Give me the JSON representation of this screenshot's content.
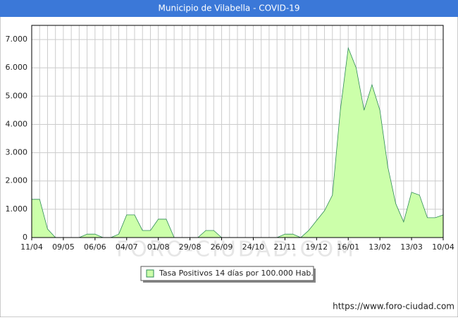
{
  "chart_data": {
    "type": "area",
    "title": "Municipio de Vilabella - COVID-19",
    "watermark": "FORO-CIUDAD.COM",
    "footer": "https://www.foro-ciudad.com",
    "categories": [
      "11/04",
      null,
      null,
      null,
      "09/05",
      null,
      null,
      null,
      "06/06",
      null,
      null,
      null,
      "04/07",
      null,
      null,
      null,
      "01/08",
      null,
      null,
      null,
      "29/08",
      null,
      null,
      null,
      "26/09",
      null,
      null,
      null,
      "24/10",
      null,
      null,
      null,
      "21/11",
      null,
      null,
      null,
      "19/12",
      null,
      null,
      null,
      "16/01",
      null,
      null,
      null,
      "13/02",
      null,
      null,
      null,
      "13/03",
      null,
      null,
      null,
      "10/04"
    ],
    "series": [
      {
        "name": "Tasa Positivos 14 días por 100.000 Hab.",
        "color": "#2e8b57",
        "fill": "#ccffaa",
        "values": [
          1350,
          1350,
          300,
          0,
          0,
          0,
          0,
          120,
          120,
          0,
          0,
          120,
          800,
          800,
          250,
          250,
          650,
          650,
          0,
          0,
          0,
          0,
          250,
          250,
          0,
          0,
          0,
          0,
          0,
          0,
          0,
          0,
          120,
          120,
          0,
          250,
          600,
          950,
          1500,
          4500,
          6700,
          6000,
          4500,
          5400,
          4500,
          2500,
          1200,
          550,
          1600,
          1500,
          700,
          700,
          800
        ]
      }
    ],
    "ylim": [
      0,
      7500
    ],
    "yticks": [
      0,
      {
        "value": 1000,
        "label": "1.000"
      },
      {
        "value": 2000,
        "label": "2.000"
      },
      {
        "value": 3000,
        "label": "3.000"
      },
      {
        "value": 4000,
        "label": "4.000"
      },
      {
        "value": 5000,
        "label": "5.000"
      },
      {
        "value": 6000,
        "label": "6.000"
      },
      {
        "value": 7000,
        "label": "7.000"
      }
    ],
    "grid": true
  }
}
